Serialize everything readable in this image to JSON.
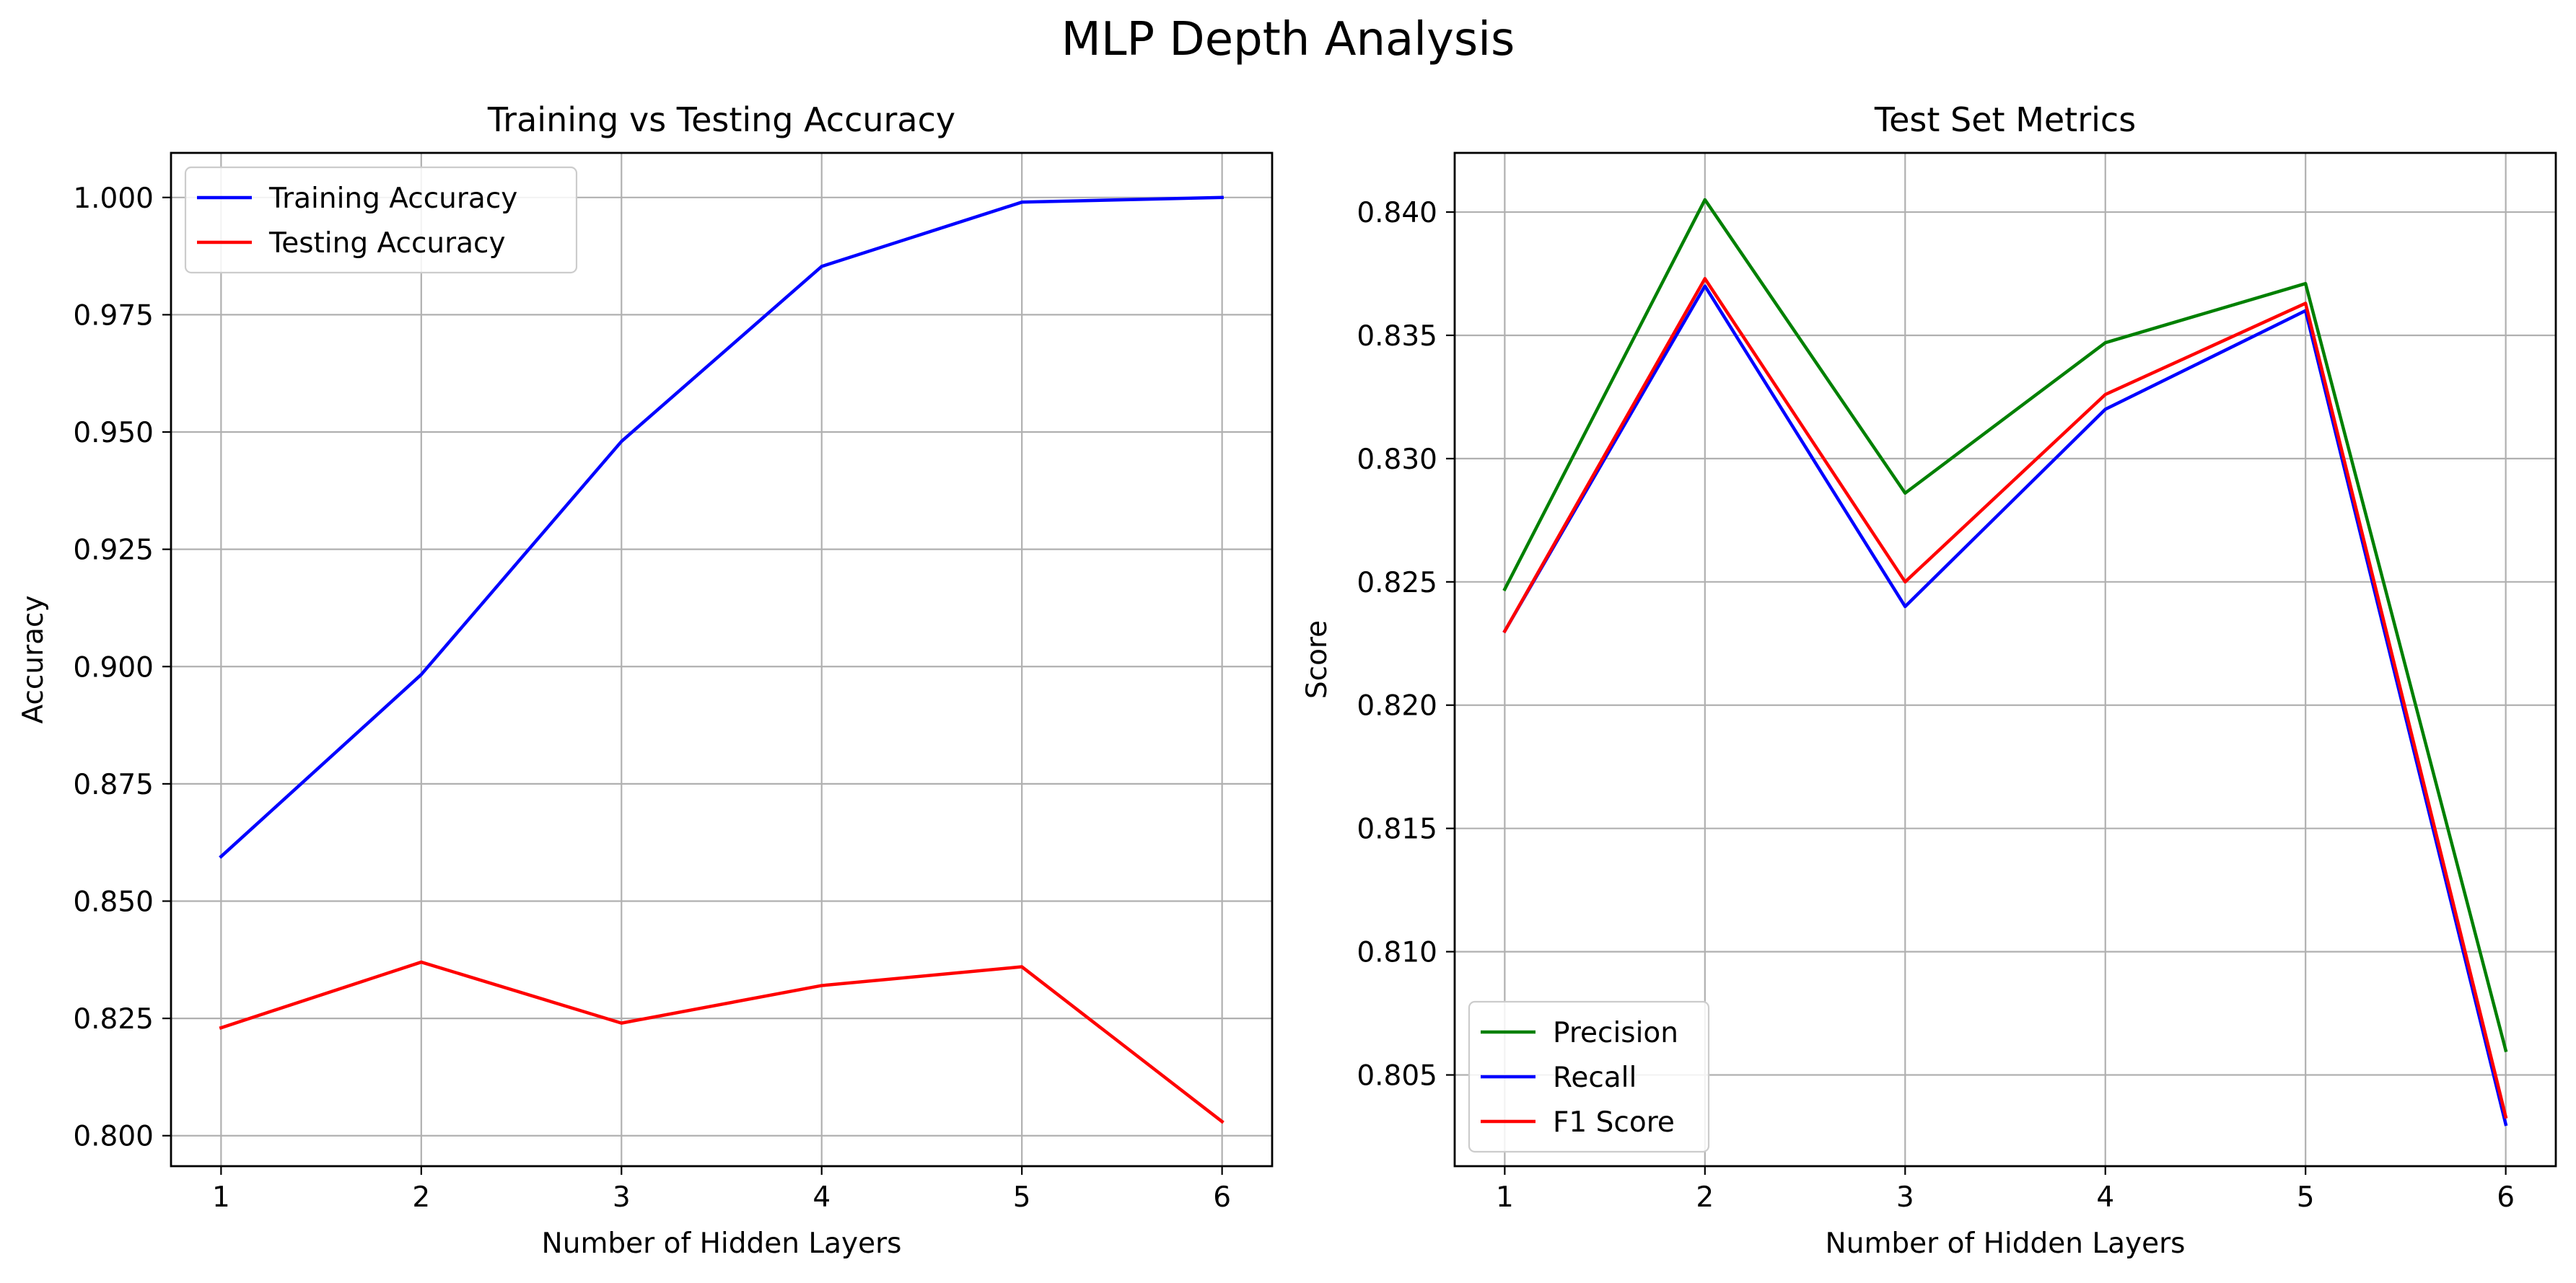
{
  "suptitle": "MLP Depth Analysis",
  "chart_data": [
    {
      "type": "line",
      "title": "Training vs Testing Accuracy",
      "xlabel": "Number of Hidden Layers",
      "ylabel": "Accuracy",
      "x": [
        1,
        2,
        3,
        4,
        5,
        6
      ],
      "xlim": [
        0.75,
        6.25
      ],
      "ylim": [
        0.7935,
        1.0095
      ],
      "xticks": [
        1,
        2,
        3,
        4,
        5,
        6
      ],
      "yticks": [
        0.8,
        0.825,
        0.85,
        0.875,
        0.9,
        0.925,
        0.95,
        0.975,
        1.0
      ],
      "ytick_labels": [
        "0.800",
        "0.825",
        "0.850",
        "0.875",
        "0.900",
        "0.925",
        "0.950",
        "0.975",
        "1.000"
      ],
      "grid": true,
      "legend_position": "upper-left",
      "series": [
        {
          "name": "Training Accuracy",
          "color": "#0000ff",
          "values": [
            0.8595,
            0.8983,
            0.948,
            0.9853,
            0.999,
            1.0
          ]
        },
        {
          "name": "Testing Accuracy",
          "color": "#ff0000",
          "values": [
            0.823,
            0.837,
            0.824,
            0.832,
            0.836,
            0.803
          ]
        }
      ]
    },
    {
      "type": "line",
      "title": "Test Set Metrics",
      "xlabel": "Number of Hidden Layers",
      "ylabel": "Score",
      "x": [
        1,
        2,
        3,
        4,
        5,
        6
      ],
      "xlim": [
        0.75,
        6.25
      ],
      "ylim": [
        0.8013,
        0.8424
      ],
      "xticks": [
        1,
        2,
        3,
        4,
        5,
        6
      ],
      "yticks": [
        0.805,
        0.81,
        0.815,
        0.82,
        0.825,
        0.83,
        0.835,
        0.84
      ],
      "ytick_labels": [
        "0.805",
        "0.810",
        "0.815",
        "0.820",
        "0.825",
        "0.830",
        "0.835",
        "0.840"
      ],
      "grid": true,
      "legend_position": "lower-left",
      "series": [
        {
          "name": "Precision",
          "color": "#008000",
          "values": [
            0.8247,
            0.8405,
            0.8286,
            0.8347,
            0.8371,
            0.806
          ]
        },
        {
          "name": "Recall",
          "color": "#0000ff",
          "values": [
            0.823,
            0.837,
            0.824,
            0.832,
            0.836,
            0.803
          ]
        },
        {
          "name": "F1 Score",
          "color": "#ff0000",
          "values": [
            0.823,
            0.8373,
            0.825,
            0.8326,
            0.8363,
            0.8033
          ]
        }
      ]
    }
  ]
}
